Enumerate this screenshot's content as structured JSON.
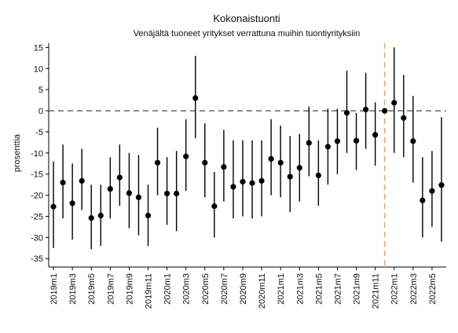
{
  "chart_data": {
    "type": "scatter",
    "title": "Kokonaistuonti",
    "subtitle": "Venäjältä tuoneet yritykset verrattuna muihin tuontiyrityksiin",
    "xlabel": "",
    "ylabel": "prosenttia",
    "ylim": [
      -37,
      16
    ],
    "yticks": [
      15,
      10,
      5,
      0,
      -5,
      -10,
      -15,
      -20,
      -25,
      -30,
      -35
    ],
    "reference_line_y": 0,
    "reference_line_x_category": "2021m12",
    "colors": {
      "point": "#000000",
      "interval": "#000000",
      "zero_line": "#333333",
      "vertical_line": "#f4a460"
    },
    "categories": [
      "2019m1",
      "2019m2",
      "2019m3",
      "2019m4",
      "2019m5",
      "2019m6",
      "2019m7",
      "2019m8",
      "2019m9",
      "2019m10",
      "2019m11",
      "2019m12",
      "2020m1",
      "2020m2",
      "2020m3",
      "2020m4",
      "2020m5",
      "2020m6",
      "2020m7",
      "2020m8",
      "2020m9",
      "2020m10",
      "2020m11",
      "2020m12",
      "2021m1",
      "2021m2",
      "2021m3",
      "2021m4",
      "2021m5",
      "2021m6",
      "2021m7",
      "2021m8",
      "2021m9",
      "2021m10",
      "2021m11",
      "2021m12",
      "2022m1",
      "2022m2",
      "2022m3",
      "2022m4",
      "2022m5",
      "2022m6"
    ],
    "tick_labels": [
      "2019m1",
      "2019m3",
      "2019m5",
      "2019m7",
      "2019m9",
      "2019m11",
      "2020m1",
      "2020m3",
      "2020m5",
      "2020m7",
      "2020m9",
      "2020m11",
      "2021m1",
      "2021m3",
      "2021m5",
      "2021m7",
      "2021m9",
      "2021m11",
      "2022m1",
      "2022m3",
      "2022m5"
    ],
    "series": [
      {
        "values": [
          -22.7,
          -17.0,
          -21.9,
          -16.6,
          -25.4,
          -24.8,
          -18.5,
          -15.8,
          -19.5,
          -20.5,
          -24.8,
          -12.3,
          -19.6,
          -19.6,
          -10.8,
          3.0,
          -12.3,
          -22.6,
          -13.3,
          -18.0,
          -16.8,
          -17.1,
          -16.6,
          -11.4,
          -12.3,
          -15.6,
          -13.5,
          -7.6,
          -15.3,
          -8.5,
          -7.2,
          -0.5,
          -7.1,
          0.3,
          -5.7,
          0.0,
          1.9,
          -1.7,
          -7.2,
          -21.2,
          -19.0,
          -17.6
        ],
        "lower": [
          -32.5,
          -25.5,
          -30.5,
          -23.5,
          -32.8,
          -32.0,
          -25.5,
          -22.5,
          -27.8,
          -29.5,
          -32.0,
          -20.0,
          -27.0,
          -28.5,
          -19.0,
          -6.5,
          -20.5,
          -30.0,
          -21.5,
          -25.5,
          -25.0,
          -25.5,
          -25.0,
          -20.0,
          -20.5,
          -24.0,
          -21.5,
          -15.5,
          -22.5,
          -17.5,
          -15.0,
          -10.0,
          -14.0,
          -9.0,
          -13.0,
          0.0,
          -10.0,
          -11.0,
          -17.0,
          -30.0,
          -27.5,
          -31.0
        ],
        "upper": [
          -12.0,
          -8.0,
          -12.5,
          -9.0,
          -17.5,
          -17.5,
          -11.0,
          -8.0,
          -10.0,
          -10.5,
          -17.5,
          -4.0,
          -11.0,
          -9.5,
          -2.0,
          13.0,
          -3.0,
          -14.5,
          -4.5,
          -7.0,
          -7.0,
          -7.0,
          -7.0,
          -2.0,
          -3.5,
          -6.0,
          -5.5,
          1.0,
          -7.0,
          0.5,
          0.5,
          9.5,
          -0.5,
          9.0,
          2.0,
          0.0,
          15.0,
          8.5,
          3.5,
          -11.0,
          -9.5,
          -1.5
        ]
      }
    ]
  }
}
